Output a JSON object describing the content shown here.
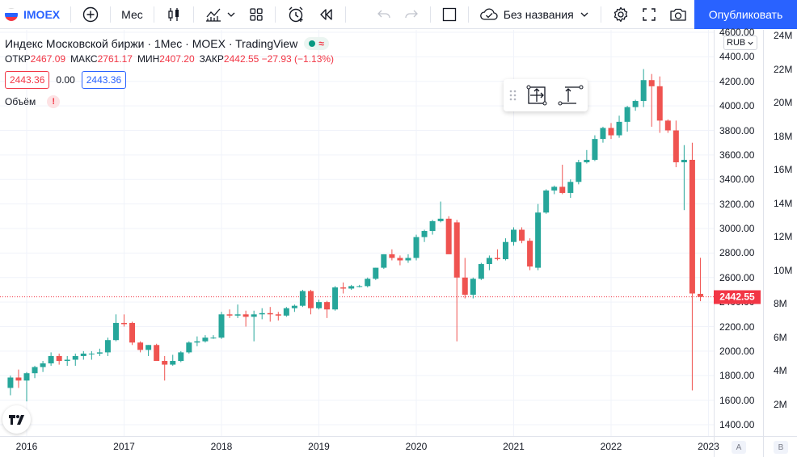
{
  "toolbar": {
    "symbol": "IMOEX",
    "interval": "Мес",
    "layout_name": "Без названия",
    "publish": "Опубликовать"
  },
  "legend": {
    "title": "Индекс Московской биржи · 1Мес · MOEX · TradingView",
    "wave": "≈",
    "ohlc": [
      {
        "k": "ОТКР",
        "v": "2467.09"
      },
      {
        "k": "МАКС",
        "v": "2761.17"
      },
      {
        "k": "МИН",
        "v": "2407.20"
      },
      {
        "k": "ЗАКР",
        "v": "2442.55 −27.93 (−1.13%)"
      }
    ],
    "bid": "2443.36",
    "spread": "0.00",
    "ask": "2443.36",
    "volume_label": "Объём",
    "volume_warn": "!"
  },
  "axis": {
    "currency": "RUB",
    "last_price_label": "2442.55",
    "corner_a": "A",
    "corner_b": "B"
  },
  "colors": {
    "up": "#26a69a",
    "down": "#ef5350",
    "accent": "#2962ff",
    "grid": "#f0f3fa"
  },
  "chart_data": {
    "type": "candlestick",
    "title": "Индекс Московской биржи · 1Мес · MOEX · TradingView",
    "ylim": [
      1300,
      4600
    ],
    "x_years": [
      "2016",
      "2017",
      "2018",
      "2019",
      "2020",
      "2021",
      "2022",
      "2023"
    ],
    "price_ticks": [
      "4600.00",
      "4400.00",
      "4200.00",
      "4000.00",
      "3800.00",
      "3600.00",
      "3400.00",
      "3200.00",
      "3000.00",
      "2800.00",
      "2600.00",
      "2400.00",
      "2200.00",
      "2000.00",
      "1800.00",
      "1600.00",
      "1400.00"
    ],
    "volume_ticks": [
      "24M",
      "22M",
      "20M",
      "18M",
      "16M",
      "14M",
      "12M",
      "10M",
      "8M",
      "6M",
      "4M",
      "2M"
    ],
    "last_price": 2442.55,
    "candles": [
      {
        "t": "2015-11",
        "o": 1700,
        "h": 1800,
        "l": 1640,
        "c": 1785
      },
      {
        "t": "2015-12",
        "o": 1785,
        "h": 1850,
        "l": 1700,
        "c": 1760
      },
      {
        "t": "2016-01",
        "o": 1760,
        "h": 1830,
        "l": 1590,
        "c": 1820
      },
      {
        "t": "2016-02",
        "o": 1820,
        "h": 1880,
        "l": 1780,
        "c": 1870
      },
      {
        "t": "2016-03",
        "o": 1870,
        "h": 1920,
        "l": 1830,
        "c": 1900
      },
      {
        "t": "2016-04",
        "o": 1900,
        "h": 1990,
        "l": 1880,
        "c": 1960
      },
      {
        "t": "2016-05",
        "o": 1960,
        "h": 1980,
        "l": 1890,
        "c": 1920
      },
      {
        "t": "2016-06",
        "o": 1920,
        "h": 1960,
        "l": 1880,
        "c": 1930
      },
      {
        "t": "2016-07",
        "o": 1930,
        "h": 1980,
        "l": 1880,
        "c": 1960
      },
      {
        "t": "2016-08",
        "o": 1960,
        "h": 2000,
        "l": 1930,
        "c": 1980
      },
      {
        "t": "2016-09",
        "o": 1980,
        "h": 2000,
        "l": 1930,
        "c": 1980
      },
      {
        "t": "2016-10",
        "o": 1980,
        "h": 2020,
        "l": 1960,
        "c": 1990
      },
      {
        "t": "2016-11",
        "o": 1990,
        "h": 2110,
        "l": 1960,
        "c": 2090
      },
      {
        "t": "2016-12",
        "o": 2090,
        "h": 2300,
        "l": 2080,
        "c": 2230
      },
      {
        "t": "2017-01",
        "o": 2230,
        "h": 2300,
        "l": 2200,
        "c": 2220
      },
      {
        "t": "2017-02",
        "o": 2230,
        "h": 2240,
        "l": 2050,
        "c": 2070
      },
      {
        "t": "2017-03",
        "o": 2070,
        "h": 2080,
        "l": 1990,
        "c": 2010
      },
      {
        "t": "2017-04",
        "o": 2010,
        "h": 2050,
        "l": 1960,
        "c": 2050
      },
      {
        "t": "2017-05",
        "o": 2050,
        "h": 2060,
        "l": 1920,
        "c": 1920
      },
      {
        "t": "2017-06",
        "o": 1920,
        "h": 1960,
        "l": 1760,
        "c": 1890
      },
      {
        "t": "2017-07",
        "o": 1890,
        "h": 1970,
        "l": 1880,
        "c": 1920
      },
      {
        "t": "2017-08",
        "o": 1920,
        "h": 2000,
        "l": 1910,
        "c": 1990
      },
      {
        "t": "2017-09",
        "o": 1990,
        "h": 2080,
        "l": 1980,
        "c": 2070
      },
      {
        "t": "2017-10",
        "o": 2070,
        "h": 2120,
        "l": 2040,
        "c": 2080
      },
      {
        "t": "2017-11",
        "o": 2080,
        "h": 2130,
        "l": 2070,
        "c": 2110
      },
      {
        "t": "2017-12",
        "o": 2110,
        "h": 2130,
        "l": 2100,
        "c": 2110
      },
      {
        "t": "2018-01",
        "o": 2110,
        "h": 2320,
        "l": 2100,
        "c": 2300
      },
      {
        "t": "2018-02",
        "o": 2300,
        "h": 2340,
        "l": 2270,
        "c": 2290
      },
      {
        "t": "2018-03",
        "o": 2290,
        "h": 2380,
        "l": 2270,
        "c": 2300
      },
      {
        "t": "2018-04",
        "o": 2300,
        "h": 2330,
        "l": 2200,
        "c": 2280
      },
      {
        "t": "2018-05",
        "o": 2280,
        "h": 2330,
        "l": 2080,
        "c": 2300
      },
      {
        "t": "2018-06",
        "o": 2300,
        "h": 2350,
        "l": 2260,
        "c": 2310
      },
      {
        "t": "2018-07",
        "o": 2310,
        "h": 2360,
        "l": 2240,
        "c": 2300
      },
      {
        "t": "2018-08",
        "o": 2300,
        "h": 2320,
        "l": 2250,
        "c": 2290
      },
      {
        "t": "2018-09",
        "o": 2290,
        "h": 2360,
        "l": 2280,
        "c": 2350
      },
      {
        "t": "2018-10",
        "o": 2350,
        "h": 2380,
        "l": 2320,
        "c": 2370
      },
      {
        "t": "2018-11",
        "o": 2370,
        "h": 2500,
        "l": 2360,
        "c": 2490
      },
      {
        "t": "2018-12",
        "o": 2490,
        "h": 2500,
        "l": 2300,
        "c": 2350
      },
      {
        "t": "2019-01",
        "o": 2350,
        "h": 2420,
        "l": 2340,
        "c": 2400
      },
      {
        "t": "2019-02",
        "o": 2400,
        "h": 2410,
        "l": 2270,
        "c": 2340
      },
      {
        "t": "2019-03",
        "o": 2340,
        "h": 2530,
        "l": 2330,
        "c": 2520
      },
      {
        "t": "2019-04",
        "o": 2520,
        "h": 2560,
        "l": 2470,
        "c": 2510
      },
      {
        "t": "2019-05",
        "o": 2510,
        "h": 2540,
        "l": 2500,
        "c": 2530
      },
      {
        "t": "2019-06",
        "o": 2530,
        "h": 2540,
        "l": 2520,
        "c": 2530
      },
      {
        "t": "2019-07",
        "o": 2530,
        "h": 2600,
        "l": 2520,
        "c": 2590
      },
      {
        "t": "2019-08",
        "o": 2590,
        "h": 2680,
        "l": 2580,
        "c": 2680
      },
      {
        "t": "2019-09",
        "o": 2680,
        "h": 2790,
        "l": 2670,
        "c": 2790
      },
      {
        "t": "2019-10",
        "o": 2790,
        "h": 2830,
        "l": 2740,
        "c": 2760
      },
      {
        "t": "2019-11",
        "o": 2760,
        "h": 2780,
        "l": 2700,
        "c": 2740
      },
      {
        "t": "2019-12",
        "o": 2740,
        "h": 2790,
        "l": 2720,
        "c": 2760
      },
      {
        "t": "2020-01",
        "o": 2760,
        "h": 2950,
        "l": 2740,
        "c": 2930
      },
      {
        "t": "2020-02",
        "o": 2930,
        "h": 2990,
        "l": 2890,
        "c": 2980
      },
      {
        "t": "2020-03",
        "o": 2980,
        "h": 3070,
        "l": 2950,
        "c": 3060
      },
      {
        "t": "2020-04",
        "o": 3060,
        "h": 3220,
        "l": 3050,
        "c": 3080
      },
      {
        "t": "2020-05",
        "o": 3080,
        "h": 3100,
        "l": 2800,
        "c": 2790
      },
      {
        "t": "2020-06",
        "o": 3050,
        "h": 3070,
        "l": 2080,
        "c": 2600
      },
      {
        "t": "2020-07",
        "o": 2600,
        "h": 2760,
        "l": 2430,
        "c": 2460
      },
      {
        "t": "2020-08",
        "o": 2460,
        "h": 2600,
        "l": 2430,
        "c": 2590
      },
      {
        "t": "2020-09",
        "o": 2590,
        "h": 2720,
        "l": 2580,
        "c": 2710
      },
      {
        "t": "2020-10",
        "o": 2710,
        "h": 2780,
        "l": 2660,
        "c": 2760
      },
      {
        "t": "2020-11",
        "o": 2760,
        "h": 2830,
        "l": 2740,
        "c": 2750
      },
      {
        "t": "2020-12",
        "o": 2750,
        "h": 2920,
        "l": 2740,
        "c": 2890
      },
      {
        "t": "2021-01",
        "o": 2890,
        "h": 3010,
        "l": 2860,
        "c": 2990
      },
      {
        "t": "2021-02",
        "o": 2990,
        "h": 3010,
        "l": 2880,
        "c": 2900
      },
      {
        "t": "2021-03",
        "o": 2900,
        "h": 2920,
        "l": 2660,
        "c": 2690
      },
      {
        "t": "2021-04",
        "o": 2680,
        "h": 3200,
        "l": 2660,
        "c": 3130
      },
      {
        "t": "2021-05",
        "o": 3130,
        "h": 3320,
        "l": 3120,
        "c": 3310
      },
      {
        "t": "2021-06",
        "o": 3310,
        "h": 3350,
        "l": 3280,
        "c": 3340
      },
      {
        "t": "2021-07",
        "o": 3340,
        "h": 3520,
        "l": 3280,
        "c": 3290
      },
      {
        "t": "2021-08",
        "o": 3290,
        "h": 3400,
        "l": 3250,
        "c": 3380
      },
      {
        "t": "2021-09",
        "o": 3380,
        "h": 3560,
        "l": 3360,
        "c": 3540
      },
      {
        "t": "2021-10",
        "o": 3540,
        "h": 3640,
        "l": 3530,
        "c": 3560
      },
      {
        "t": "2021-11",
        "o": 3560,
        "h": 3760,
        "l": 3550,
        "c": 3730
      },
      {
        "t": "2021-12",
        "o": 3730,
        "h": 3830,
        "l": 3700,
        "c": 3820
      },
      {
        "t": "2022-01",
        "o": 3820,
        "h": 3860,
        "l": 3730,
        "c": 3760
      },
      {
        "t": "2022-02",
        "o": 3760,
        "h": 3920,
        "l": 3740,
        "c": 3870
      },
      {
        "t": "2022-03",
        "o": 3870,
        "h": 4000,
        "l": 3790,
        "c": 3990
      },
      {
        "t": "2022-04",
        "o": 3990,
        "h": 4050,
        "l": 3960,
        "c": 4040
      },
      {
        "t": "2022-05",
        "o": 4040,
        "h": 4300,
        "l": 3990,
        "c": 4210
      },
      {
        "t": "2022-06",
        "o": 4210,
        "h": 4260,
        "l": 3830,
        "c": 4160
      },
      {
        "t": "2022-07",
        "o": 4160,
        "h": 4240,
        "l": 3780,
        "c": 3880
      },
      {
        "t": "2022-08",
        "o": 3880,
        "h": 3890,
        "l": 3780,
        "c": 3800
      },
      {
        "t": "2022-09",
        "o": 3800,
        "h": 3880,
        "l": 3500,
        "c": 3540
      },
      {
        "t": "2022-10",
        "o": 3540,
        "h": 3680,
        "l": 3150,
        "c": 3560
      },
      {
        "t": "2022-11",
        "o": 3560,
        "h": 3700,
        "l": 1680,
        "c": 2470
      },
      {
        "t": "2022-12",
        "o": 2467.09,
        "h": 2761.17,
        "l": 2407.2,
        "c": 2442.55
      }
    ]
  }
}
